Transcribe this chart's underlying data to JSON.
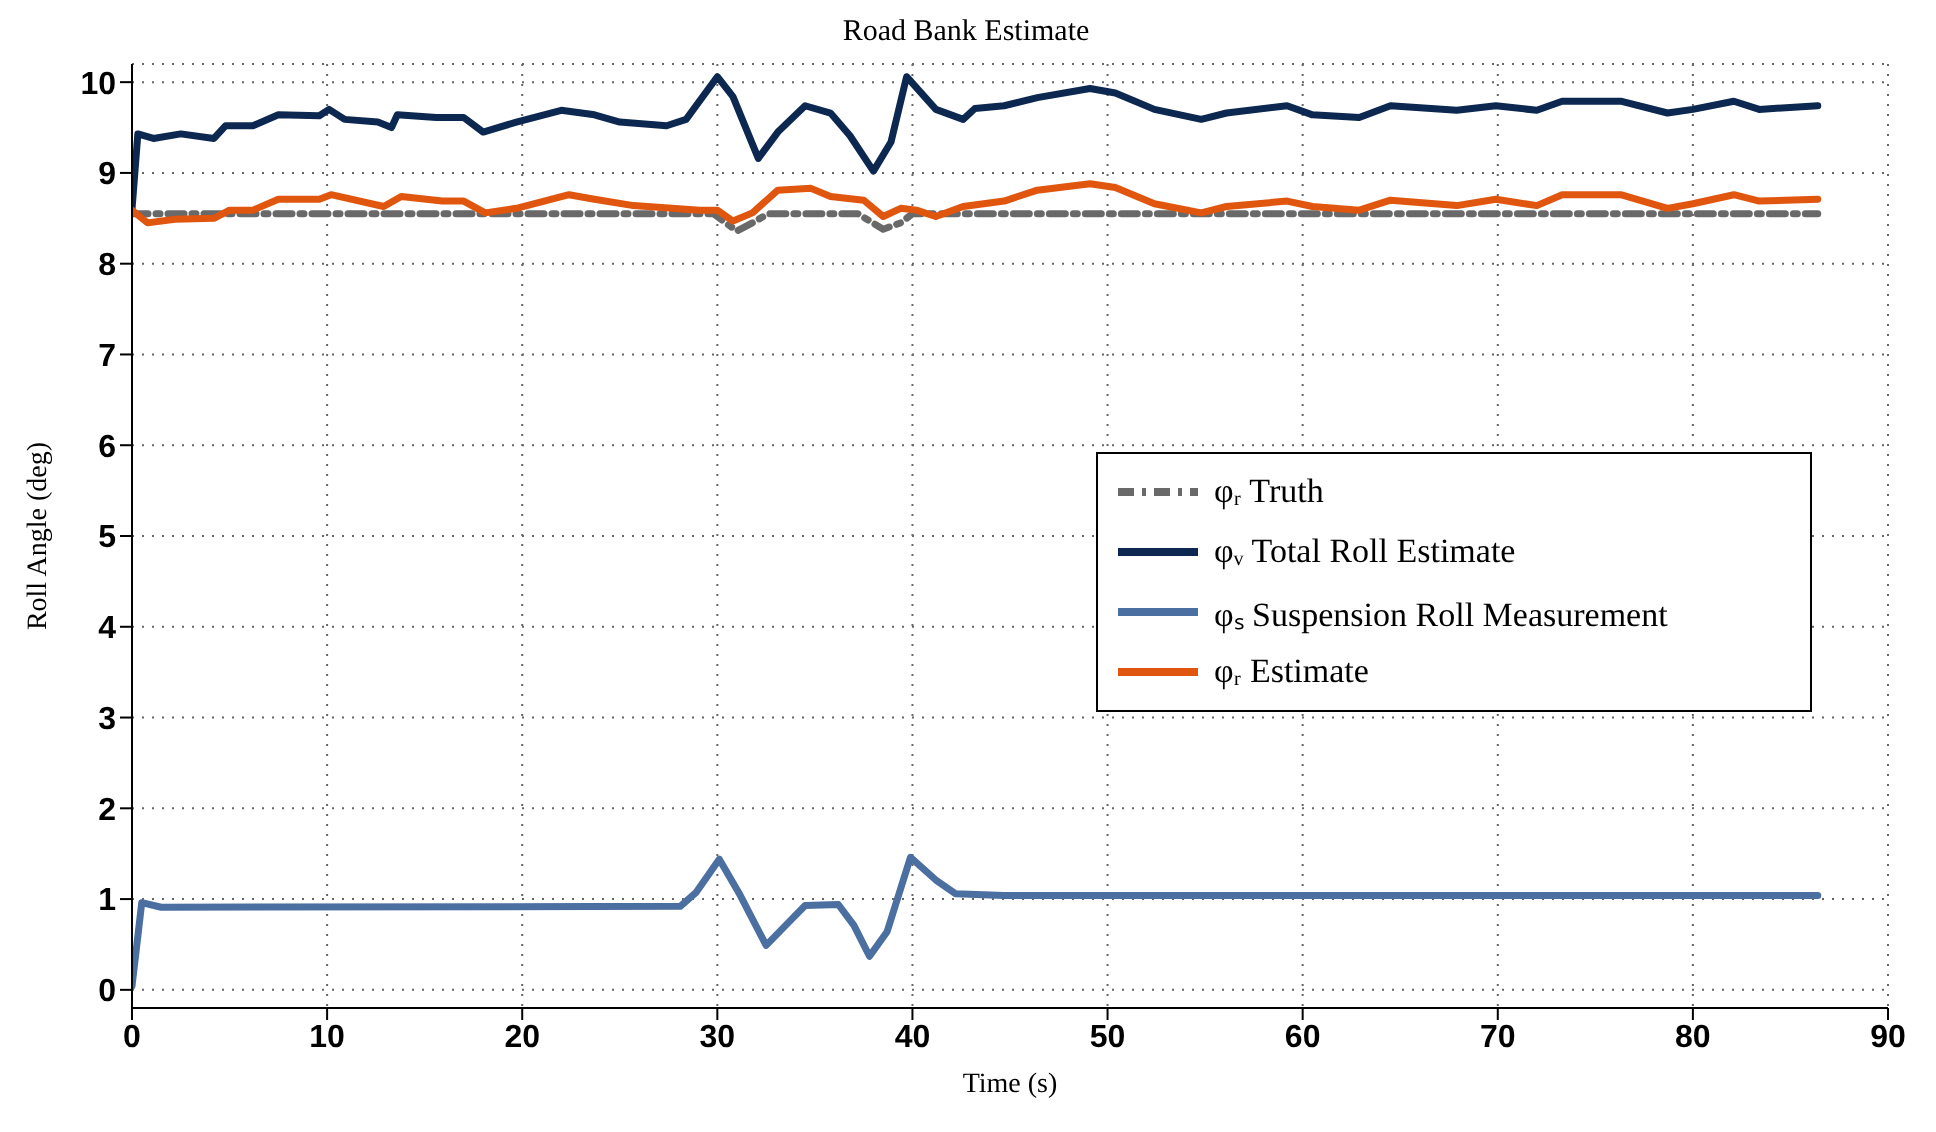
{
  "chart_data": {
    "type": "line",
    "title": "Road Bank Estimate",
    "xlabel": "Time (s)",
    "ylabel": "Roll Angle (deg)",
    "xlim": [
      0,
      90
    ],
    "xticks": [
      0,
      10,
      20,
      30,
      40,
      50,
      60,
      70,
      80,
      90
    ],
    "ylim": [
      -0.2,
      10.2
    ],
    "yticks": [
      0,
      1,
      2,
      3,
      4,
      5,
      6,
      7,
      8,
      9,
      10
    ],
    "grid": true,
    "legend": "right",
    "marker": "none",
    "series": [
      {
        "name": "φᵣ Truth",
        "color": "#696969",
        "line_style": "dashed",
        "x": [
          0,
          29.8,
          31,
          31.8,
          32.6,
          37.2,
          38.5,
          39.4,
          40,
          86.4
        ],
        "values": [
          8.55,
          8.55,
          8.36,
          8.45,
          8.55,
          8.55,
          8.38,
          8.45,
          8.55,
          8.55
        ]
      },
      {
        "name": "φᵥ Total Roll Estimate",
        "color": "#0c2850",
        "line_style": "solid",
        "x": [
          0,
          0.3,
          1.1,
          2.5,
          4.2,
          4.8,
          6.2,
          7.5,
          9.6,
          10.1,
          10.9,
          12.6,
          13.3,
          13.6,
          15.6,
          17,
          18,
          19.7,
          22,
          23.7,
          25,
          27.4,
          28.4,
          30,
          30.8,
          32.1,
          33.1,
          34.5,
          35.8,
          36.8,
          38,
          38.9,
          39.7,
          41.2,
          42.6,
          43.2,
          44.7,
          46.4,
          49.1,
          50.4,
          52.4,
          54.8,
          56.1,
          59.2,
          60.5,
          62.9,
          64.5,
          67.9,
          69.9,
          72,
          73.3,
          76.3,
          78.7,
          80,
          82.1,
          83.4,
          86.4
        ],
        "values": [
          8.6,
          9.43,
          9.38,
          9.43,
          9.38,
          9.52,
          9.52,
          9.64,
          9.63,
          9.7,
          9.59,
          9.56,
          9.5,
          9.64,
          9.61,
          9.61,
          9.45,
          9.56,
          9.69,
          9.64,
          9.56,
          9.52,
          9.59,
          10.06,
          9.84,
          9.16,
          9.45,
          9.74,
          9.66,
          9.41,
          9.02,
          9.34,
          10.06,
          9.7,
          9.59,
          9.71,
          9.74,
          9.83,
          9.93,
          9.88,
          9.7,
          9.59,
          9.66,
          9.74,
          9.64,
          9.61,
          9.74,
          9.69,
          9.74,
          9.69,
          9.79,
          9.79,
          9.66,
          9.7,
          9.79,
          9.7,
          9.74
        ]
      },
      {
        "name": "φₛ Suspension Roll Measurement",
        "color": "#4a6fa0",
        "line_style": "solid",
        "x": [
          0,
          0.5,
          1.5,
          28.1,
          28.9,
          30.1,
          31.1,
          32.5,
          33.5,
          34.5,
          36.2,
          37,
          37.8,
          38.7,
          39.9,
          41.2,
          42.2,
          44.7,
          86.4
        ],
        "values": [
          0.04,
          0.96,
          0.91,
          0.92,
          1.07,
          1.44,
          1.07,
          0.49,
          0.71,
          0.93,
          0.94,
          0.71,
          0.37,
          0.64,
          1.46,
          1.21,
          1.06,
          1.04,
          1.04
        ]
      },
      {
        "name": "φᵣ Estimate",
        "color": "#e0560f",
        "line_style": "solid",
        "x": [
          0,
          0.8,
          2.2,
          4.2,
          5,
          6.2,
          7.5,
          9.6,
          10.2,
          12.9,
          13.8,
          15.9,
          17,
          18.1,
          19.7,
          22.4,
          23.7,
          25.7,
          29.1,
          30,
          30.8,
          31.8,
          33.1,
          34.8,
          35.8,
          37.5,
          38.5,
          39.4,
          40.2,
          41.2,
          42.6,
          44.7,
          46.4,
          49.1,
          50.4,
          52.4,
          54.8,
          56.1,
          59.2,
          60.5,
          62.9,
          64.5,
          67.9,
          69.9,
          72,
          73.3,
          76.3,
          78.7,
          80,
          82.1,
          83.4,
          86.4
        ],
        "values": [
          8.59,
          8.45,
          8.49,
          8.5,
          8.59,
          8.59,
          8.71,
          8.71,
          8.76,
          8.63,
          8.74,
          8.69,
          8.69,
          8.56,
          8.61,
          8.76,
          8.71,
          8.64,
          8.59,
          8.59,
          8.47,
          8.56,
          8.81,
          8.83,
          8.74,
          8.7,
          8.52,
          8.61,
          8.59,
          8.52,
          8.63,
          8.69,
          8.81,
          8.88,
          8.84,
          8.66,
          8.56,
          8.63,
          8.69,
          8.63,
          8.59,
          8.7,
          8.64,
          8.71,
          8.64,
          8.76,
          8.76,
          8.61,
          8.66,
          8.76,
          8.69,
          8.71
        ]
      }
    ]
  }
}
